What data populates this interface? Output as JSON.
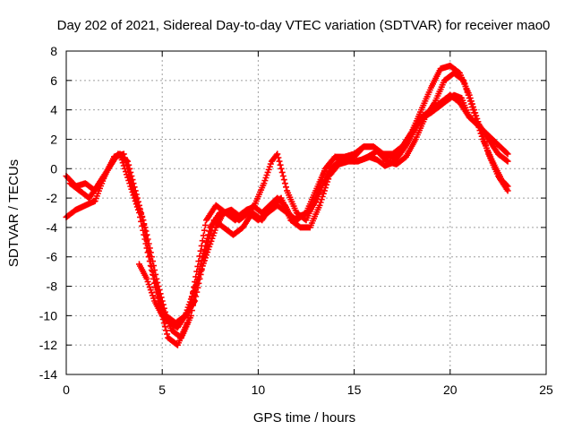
{
  "chart_data": {
    "type": "scatter",
    "title": "Day 202 of 2021, Sidereal Day-to-day VTEC variation (SDTVAR) for receiver mao0",
    "xlabel": "GPS time / hours",
    "ylabel": "SDTVAR / TECUs",
    "xlim": [
      0,
      25
    ],
    "ylim": [
      -14,
      8
    ],
    "xticks": [
      0,
      5,
      10,
      15,
      20,
      25
    ],
    "yticks": [
      -14,
      -12,
      -10,
      -8,
      -6,
      -4,
      -2,
      0,
      2,
      4,
      6,
      8
    ],
    "xtick_labels": [
      "0",
      "5",
      "10",
      "15",
      "20",
      "25"
    ],
    "ytick_labels": [
      "-14",
      "-12",
      "-10",
      "-8",
      "-6",
      "-4",
      "-2",
      "0",
      "2",
      "4",
      "6",
      "8"
    ],
    "grid": true,
    "legend": "none",
    "marker": "plus",
    "color": "#ff0000",
    "series": [
      {
        "x": [
          0.0,
          0.5,
          1.0,
          1.5,
          2.0,
          2.5,
          2.8,
          3.3,
          3.8,
          4.3,
          4.8,
          5.3,
          5.8,
          6.3,
          6.8,
          7.3,
          7.8,
          8.3,
          8.8,
          9.3,
          9.8,
          10.3,
          10.7,
          11.0,
          11.5,
          12.0,
          12.5,
          13.0,
          13.5,
          14.0,
          14.5,
          15.0,
          15.5,
          16.0,
          16.5,
          17.0,
          17.5,
          18.0,
          18.5,
          19.0,
          19.5,
          20.0,
          20.5,
          21.0,
          21.5,
          22.0,
          22.5,
          23.0
        ],
        "y": [
          -0.5,
          -1.2,
          -1.0,
          -1.5,
          -0.5,
          0.8,
          1.0,
          -1.0,
          -3.0,
          -6.0,
          -9.0,
          -11.5,
          -12.0,
          -10.5,
          -7.0,
          -3.5,
          -2.5,
          -3.0,
          -3.5,
          -3.0,
          -2.5,
          -1.0,
          0.5,
          1.0,
          -1.5,
          -3.0,
          -3.5,
          -2.0,
          0.0,
          0.8,
          0.6,
          0.8,
          1.5,
          1.5,
          1.0,
          1.0,
          1.5,
          2.5,
          4.0,
          5.5,
          6.8,
          7.0,
          6.5,
          5.0,
          3.0,
          1.0,
          -0.5,
          -1.5
        ]
      },
      {
        "x": [
          0.2,
          0.7,
          1.2,
          1.7,
          2.2,
          2.7,
          3.2,
          3.7,
          4.2,
          4.7,
          5.2,
          5.7,
          6.2,
          6.7,
          7.2,
          7.7,
          8.2,
          8.7,
          9.2,
          9.7,
          10.2,
          10.7,
          11.2,
          11.7,
          12.2,
          12.7,
          13.2,
          13.7,
          14.2,
          14.7,
          15.2,
          15.7,
          16.2,
          16.7,
          17.2,
          17.7,
          18.2,
          18.7,
          19.2,
          19.7,
          20.2,
          20.7,
          21.2,
          21.7,
          22.2,
          22.7,
          23.0
        ],
        "y": [
          -1.0,
          -1.5,
          -2.0,
          -1.0,
          0.0,
          1.0,
          0.5,
          -2.0,
          -4.5,
          -7.5,
          -10.0,
          -10.5,
          -10.0,
          -9.0,
          -6.0,
          -3.5,
          -4.0,
          -4.5,
          -4.0,
          -3.0,
          -3.5,
          -2.5,
          -2.0,
          -3.5,
          -4.0,
          -4.0,
          -2.5,
          -0.5,
          0.3,
          0.5,
          0.5,
          0.8,
          1.2,
          0.5,
          0.3,
          0.8,
          2.0,
          3.5,
          4.5,
          6.0,
          6.5,
          6.0,
          4.0,
          2.0,
          0.5,
          -0.8,
          -1.2
        ]
      },
      {
        "x": [
          0.0,
          0.5,
          1.0,
          1.5,
          2.0,
          2.5,
          3.0,
          3.5,
          4.0,
          4.5,
          5.0,
          5.5,
          6.0,
          6.5,
          7.0,
          7.5,
          8.0,
          8.5,
          9.0,
          9.5,
          10.0,
          10.5,
          11.0,
          11.5,
          12.0,
          12.5,
          13.0,
          13.5,
          14.0,
          14.5,
          15.0,
          15.5,
          16.0,
          16.5,
          17.0,
          17.5,
          18.0,
          18.5,
          19.0,
          19.5,
          20.0,
          20.5,
          21.0,
          21.5,
          22.0,
          22.5,
          23.0
        ],
        "y": [
          -3.3,
          -2.8,
          -2.5,
          -2.2,
          -0.5,
          0.8,
          1.0,
          -1.5,
          -3.5,
          -7.0,
          -9.5,
          -11.0,
          -11.5,
          -10.0,
          -6.5,
          -4.0,
          -3.0,
          -3.0,
          -3.5,
          -3.0,
          -3.5,
          -3.0,
          -2.5,
          -3.0,
          -3.5,
          -3.0,
          -1.5,
          0.0,
          0.8,
          0.8,
          1.0,
          1.5,
          1.5,
          1.0,
          0.8,
          1.2,
          2.5,
          3.5,
          4.0,
          4.5,
          5.0,
          4.5,
          3.5,
          3.0,
          2.0,
          1.0,
          0.5
        ]
      },
      {
        "x": [
          3.8,
          4.2,
          4.6,
          5.0,
          5.4,
          5.8,
          6.2,
          6.6,
          7.0,
          7.4,
          7.8,
          8.2,
          8.6,
          9.0,
          9.4,
          9.8,
          10.2,
          10.6,
          11.0,
          11.4,
          11.8,
          12.2,
          12.6,
          13.0,
          13.4,
          13.8,
          14.2,
          14.6,
          15.0,
          15.4,
          15.8,
          16.2,
          16.6,
          17.0,
          17.4,
          17.8,
          18.2,
          18.6,
          19.0,
          19.4,
          19.8,
          20.2,
          20.6,
          21.0,
          21.4,
          21.8,
          22.2,
          22.6,
          23.0
        ],
        "y": [
          -6.5,
          -7.5,
          -9.0,
          -10.0,
          -10.5,
          -10.8,
          -10.0,
          -8.5,
          -7.0,
          -5.5,
          -4.0,
          -3.0,
          -2.8,
          -3.2,
          -2.8,
          -2.6,
          -3.0,
          -2.5,
          -2.0,
          -2.5,
          -3.5,
          -3.2,
          -3.0,
          -2.2,
          -1.0,
          0.0,
          0.5,
          0.6,
          0.5,
          0.6,
          0.8,
          0.6,
          0.2,
          0.4,
          1.0,
          1.8,
          2.8,
          3.5,
          3.8,
          4.2,
          4.6,
          5.0,
          4.8,
          3.5,
          3.0,
          2.5,
          2.0,
          1.5,
          1.0
        ]
      }
    ]
  }
}
